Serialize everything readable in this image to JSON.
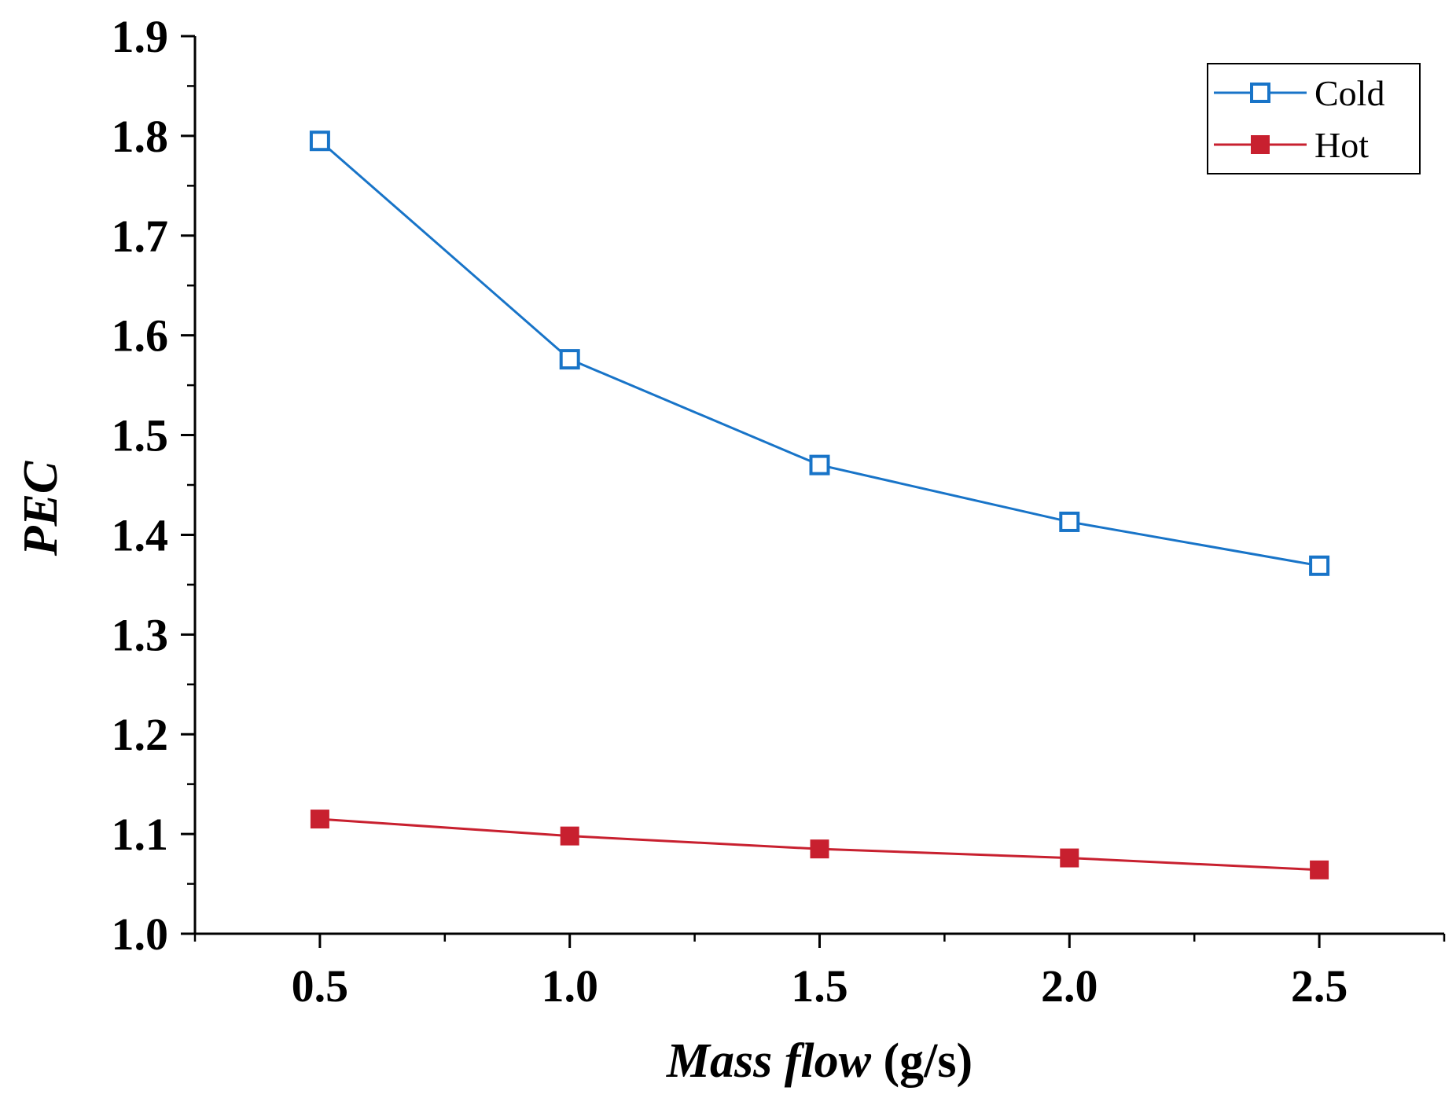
{
  "chart_data": {
    "type": "line",
    "xlabel_italic": "Mass flow",
    "xlabel_unit": " (g/s)",
    "ylabel": "PEC",
    "xlim": [
      0.25,
      2.75
    ],
    "ylim": [
      1.0,
      1.9
    ],
    "x": [
      0.5,
      1.0,
      1.5,
      2.0,
      2.5
    ],
    "x_ticks": [
      "0.5",
      "1.0",
      "1.5",
      "2.0",
      "2.5"
    ],
    "y_ticks": [
      "1.0",
      "1.1",
      "1.2",
      "1.3",
      "1.4",
      "1.5",
      "1.6",
      "1.7",
      "1.8",
      "1.9"
    ],
    "grid": false,
    "legend_position": "top-right",
    "series": [
      {
        "name": "Cold",
        "values": [
          1.795,
          1.576,
          1.47,
          1.413,
          1.369
        ],
        "color": "#1874c8",
        "marker": "open-square"
      },
      {
        "name": "Hot",
        "values": [
          1.115,
          1.098,
          1.085,
          1.076,
          1.064
        ],
        "color": "#c8202f",
        "marker": "filled-square"
      }
    ]
  }
}
